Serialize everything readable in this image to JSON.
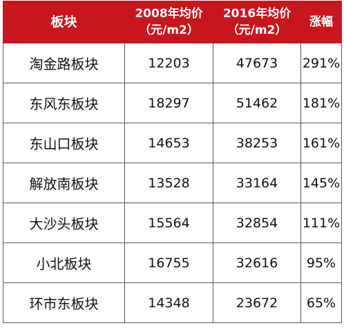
{
  "table": {
    "headers": {
      "block": "板块",
      "price_2008_line1": "2008年均价",
      "price_2008_line2": "（元/m2）",
      "price_2016_line1": "2016年均价",
      "price_2016_line2": "（元/m2）",
      "growth": "涨幅"
    },
    "rows": [
      {
        "name": "淘金路板块",
        "price_2008": "12203",
        "price_2016": "47673",
        "growth": "291%"
      },
      {
        "name": "东风东板块",
        "price_2008": "18297",
        "price_2016": "51462",
        "growth": "181%"
      },
      {
        "name": "东山口板块",
        "price_2008": "14653",
        "price_2016": "38253",
        "growth": "161%"
      },
      {
        "name": "解放南板块",
        "price_2008": "13528",
        "price_2016": "33164",
        "growth": "145%"
      },
      {
        "name": "大沙头板块",
        "price_2008": "15564",
        "price_2016": "32854",
        "growth": "111%"
      },
      {
        "name": "小北板块",
        "price_2008": "16755",
        "price_2016": "32616",
        "growth": "95%"
      },
      {
        "name": "环市东板块",
        "price_2008": "14348",
        "price_2016": "23672",
        "growth": "65%"
      }
    ]
  },
  "colors": {
    "header_background": "#c8161d",
    "header_text": "#ffffff",
    "border": "#555555"
  }
}
